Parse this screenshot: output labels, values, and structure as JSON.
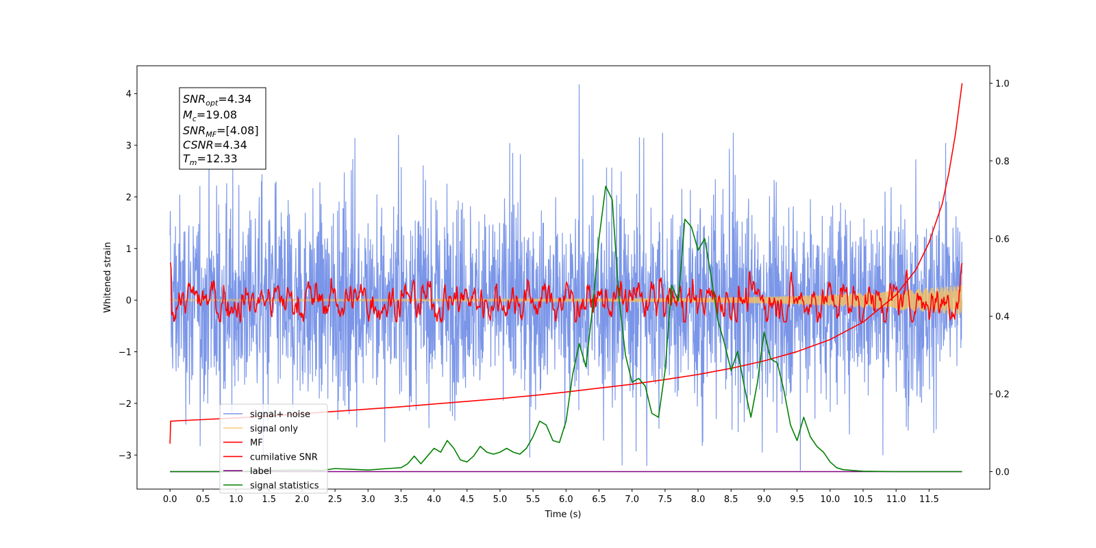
{
  "chart_data": {
    "type": "line",
    "xlabel": "Time (s)",
    "ylabel": "Whitened strain",
    "xlim": [
      -0.5,
      12.42
    ],
    "ylim": [
      -3.66,
      4.54
    ],
    "y2lim": [
      -0.045,
      1.045
    ],
    "x_ticks": [
      0.0,
      0.5,
      1.0,
      1.5,
      2.0,
      2.5,
      3.0,
      3.5,
      4.0,
      4.5,
      5.0,
      5.5,
      6.0,
      6.5,
      7.0,
      7.5,
      8.0,
      8.5,
      9.0,
      9.5,
      10.0,
      10.5,
      11.0,
      11.5
    ],
    "x_tick_labels": [
      "0.0",
      "0.5",
      "1.0",
      "1.5",
      "2.0",
      "2.5",
      "3.0",
      "3.5",
      "4.0",
      "4.5",
      "5.0",
      "5.5",
      "6.0",
      "6.5",
      "7.0",
      "7.5",
      "8.0",
      "8.5",
      "9.0",
      "9.5",
      "10.0",
      "10.5",
      "11.0",
      "11.5"
    ],
    "y_ticks": [
      -3,
      -2,
      -1,
      0,
      1,
      2,
      3,
      4
    ],
    "y_tick_labels": [
      "−3",
      "−2",
      "−1",
      "0",
      "1",
      "2",
      "3",
      "4"
    ],
    "y2_ticks": [
      0.0,
      0.2,
      0.4,
      0.6,
      0.8,
      1.0
    ],
    "y2_tick_labels": [
      "0.0",
      "0.2",
      "0.4",
      "0.6",
      "0.8",
      "1.0"
    ],
    "legend_position": "lower-left",
    "grid": false,
    "series": [
      {
        "name": "signal+ noise",
        "color": "#7b96e8",
        "axis": "left",
        "description": "noisy whitened strain, roughly within ±2 with spikes to about 4.2 and -3.2 over t = 0 to 12"
      },
      {
        "name": "signal only",
        "color": "#f5c060",
        "axis": "left",
        "description": "small-amplitude chirp near 0, growing toward the end"
      },
      {
        "name": "MF",
        "color": "#ff0000",
        "axis": "left",
        "description": "matched-filter output fluctuating between about -0.4 and 0.8"
      },
      {
        "name": "cumilative SNR",
        "color": "#ff0000",
        "axis": "right",
        "x": [
          0.0,
          0.01,
          0.5,
          1.0,
          1.5,
          2.0,
          2.5,
          3.0,
          3.5,
          4.0,
          4.5,
          5.0,
          5.5,
          6.0,
          6.5,
          7.0,
          7.5,
          8.0,
          8.5,
          9.0,
          9.5,
          10.0,
          10.5,
          11.0,
          11.3,
          11.5,
          11.7,
          11.8,
          11.9,
          12.0
        ],
        "y": [
          0.072,
          0.13,
          0.134,
          0.138,
          0.143,
          0.149,
          0.155,
          0.161,
          0.167,
          0.174,
          0.181,
          0.188,
          0.196,
          0.205,
          0.215,
          0.225,
          0.237,
          0.25,
          0.266,
          0.285,
          0.309,
          0.34,
          0.385,
          0.455,
          0.52,
          0.59,
          0.69,
          0.77,
          0.87,
          1.0
        ]
      },
      {
        "name": "label",
        "color": "#800080",
        "axis": "right",
        "x": [
          0.0,
          12.0
        ],
        "y": [
          0.0,
          0.0
        ]
      },
      {
        "name": "signal statistics",
        "color": "#008000",
        "axis": "right",
        "x": [
          0.0,
          0.5,
          1.0,
          1.5,
          2.0,
          2.3,
          2.5,
          3.0,
          3.3,
          3.5,
          3.6,
          3.7,
          3.8,
          3.9,
          4.0,
          4.1,
          4.2,
          4.3,
          4.4,
          4.5,
          4.6,
          4.7,
          4.8,
          4.9,
          5.0,
          5.1,
          5.2,
          5.3,
          5.4,
          5.5,
          5.6,
          5.7,
          5.8,
          5.9,
          6.0,
          6.1,
          6.2,
          6.3,
          6.4,
          6.5,
          6.6,
          6.7,
          6.8,
          6.9,
          7.0,
          7.1,
          7.2,
          7.3,
          7.4,
          7.5,
          7.6,
          7.7,
          7.8,
          7.9,
          8.0,
          8.1,
          8.2,
          8.3,
          8.4,
          8.5,
          8.6,
          8.7,
          8.8,
          8.9,
          9.0,
          9.1,
          9.2,
          9.3,
          9.4,
          9.5,
          9.6,
          9.7,
          9.8,
          9.9,
          10.0,
          10.1,
          10.2,
          10.5,
          11.0,
          12.0
        ],
        "y": [
          0.0,
          0.0,
          0.0,
          0.003,
          0.004,
          0.003,
          0.008,
          0.004,
          0.008,
          0.01,
          0.02,
          0.04,
          0.02,
          0.04,
          0.06,
          0.05,
          0.08,
          0.06,
          0.03,
          0.025,
          0.04,
          0.065,
          0.05,
          0.045,
          0.05,
          0.06,
          0.05,
          0.045,
          0.06,
          0.09,
          0.13,
          0.12,
          0.08,
          0.075,
          0.13,
          0.25,
          0.33,
          0.27,
          0.42,
          0.6,
          0.735,
          0.7,
          0.45,
          0.3,
          0.23,
          0.24,
          0.22,
          0.15,
          0.14,
          0.26,
          0.48,
          0.44,
          0.65,
          0.63,
          0.57,
          0.6,
          0.5,
          0.39,
          0.33,
          0.26,
          0.31,
          0.22,
          0.14,
          0.23,
          0.36,
          0.29,
          0.28,
          0.21,
          0.12,
          0.08,
          0.14,
          0.09,
          0.065,
          0.05,
          0.025,
          0.01,
          0.005,
          0.001,
          0.0,
          0.0
        ]
      }
    ]
  },
  "info_box": {
    "snr_opt": "=4.34",
    "mc": "=19.08",
    "snr_mf": "=[4.08]",
    "csnr": "=4.34",
    "tm": "=12.33"
  }
}
